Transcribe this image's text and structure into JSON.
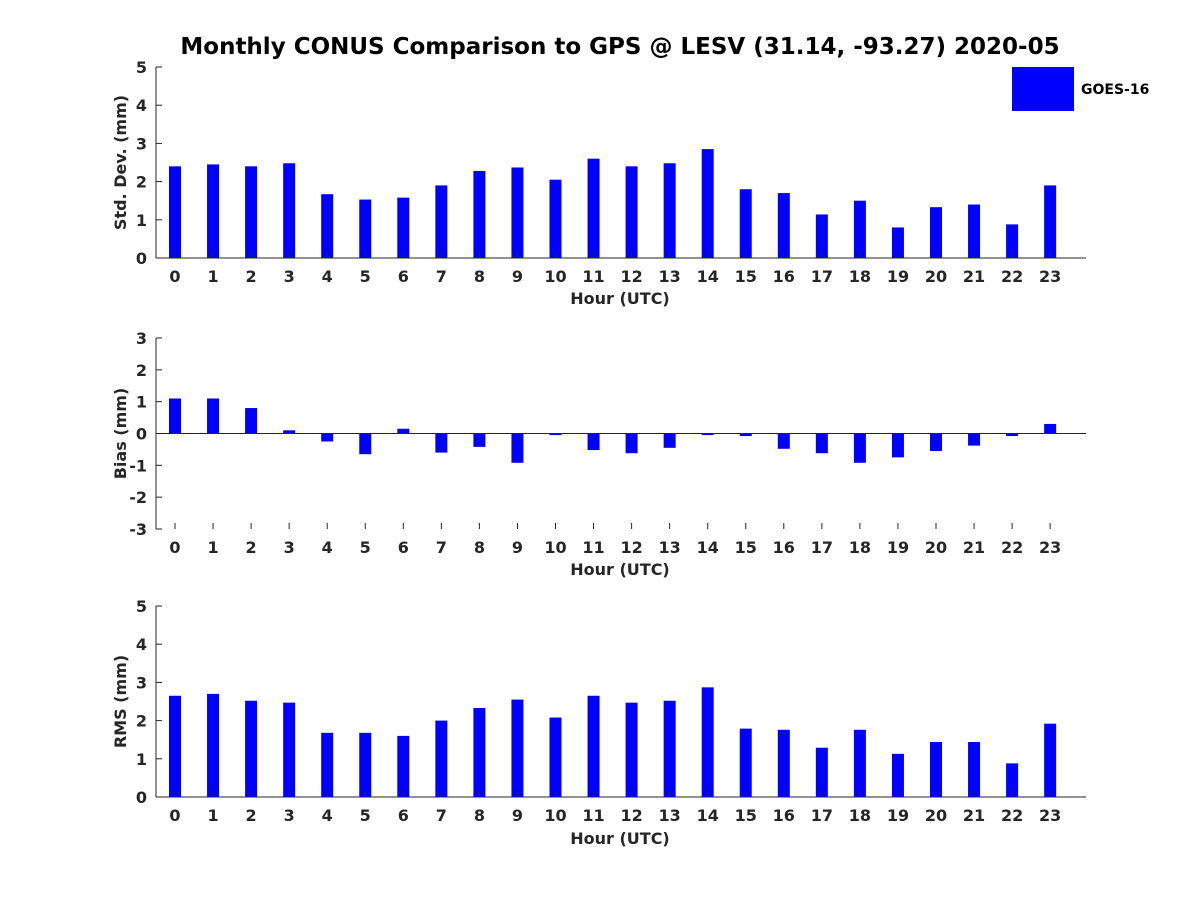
{
  "title": "Monthly CONUS Comparison to GPS @ LESV (31.14, -93.27) 2020-05",
  "legend": {
    "label": "GOES-16",
    "color": "#0000ff"
  },
  "chart_data": [
    {
      "type": "bar",
      "categories": [
        "0",
        "1",
        "2",
        "3",
        "4",
        "5",
        "6",
        "7",
        "8",
        "9",
        "10",
        "11",
        "12",
        "13",
        "14",
        "15",
        "16",
        "17",
        "18",
        "19",
        "20",
        "21",
        "22",
        "23"
      ],
      "series": [
        {
          "name": "GOES-16",
          "values": [
            2.4,
            2.45,
            2.4,
            2.48,
            1.67,
            1.53,
            1.58,
            1.9,
            2.28,
            2.37,
            2.05,
            2.6,
            2.4,
            2.48,
            2.85,
            1.8,
            1.7,
            1.14,
            1.5,
            0.8,
            1.33,
            1.4,
            0.88,
            1.9
          ]
        }
      ],
      "xlabel": "Hour (UTC)",
      "ylabel": "Std. Dev. (mm)",
      "ylim": [
        0,
        5
      ],
      "yticks": [
        0,
        1,
        2,
        3,
        4,
        5
      ],
      "color": "#0000ff"
    },
    {
      "type": "bar",
      "categories": [
        "0",
        "1",
        "2",
        "3",
        "4",
        "5",
        "6",
        "7",
        "8",
        "9",
        "10",
        "11",
        "12",
        "13",
        "14",
        "15",
        "16",
        "17",
        "18",
        "19",
        "20",
        "21",
        "22",
        "23"
      ],
      "series": [
        {
          "name": "GOES-16",
          "values": [
            1.1,
            1.1,
            0.8,
            0.1,
            -0.25,
            -0.65,
            0.15,
            -0.6,
            -0.42,
            -0.92,
            -0.05,
            -0.52,
            -0.62,
            -0.45,
            -0.05,
            -0.08,
            -0.48,
            -0.62,
            -0.92,
            -0.75,
            -0.55,
            -0.38,
            -0.08,
            0.3
          ]
        }
      ],
      "xlabel": "Hour (UTC)",
      "ylabel": "Bias (mm)",
      "ylim": [
        -3,
        3
      ],
      "yticks": [
        -3,
        -2,
        -1,
        0,
        1,
        2,
        3
      ],
      "color": "#0000ff"
    },
    {
      "type": "bar",
      "categories": [
        "0",
        "1",
        "2",
        "3",
        "4",
        "5",
        "6",
        "7",
        "8",
        "9",
        "10",
        "11",
        "12",
        "13",
        "14",
        "15",
        "16",
        "17",
        "18",
        "19",
        "20",
        "21",
        "22",
        "23"
      ],
      "series": [
        {
          "name": "GOES-16",
          "values": [
            2.65,
            2.7,
            2.52,
            2.47,
            1.68,
            1.68,
            1.6,
            2.0,
            2.33,
            2.55,
            2.08,
            2.65,
            2.47,
            2.52,
            2.87,
            1.79,
            1.76,
            1.29,
            1.76,
            1.13,
            1.44,
            1.44,
            0.88,
            1.92
          ]
        }
      ],
      "xlabel": "Hour (UTC)",
      "ylabel": "RMS (mm)",
      "ylim": [
        0,
        5
      ],
      "yticks": [
        0,
        1,
        2,
        3,
        4,
        5
      ],
      "color": "#0000ff"
    }
  ]
}
